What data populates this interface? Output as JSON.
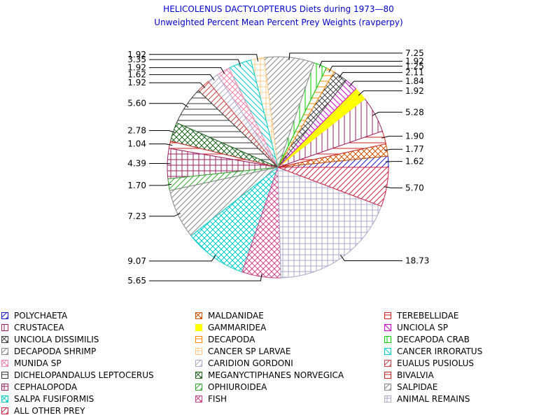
{
  "chart_data": {
    "type": "pie",
    "title": "HELICOLENUS DACTYLOPTERUS Diets during 1973—80",
    "subtitle": "Unweighted Percent Mean Percent Prey  Weights (ravperpy)",
    "title_color": "#0000cc",
    "slices": [
      {
        "name": "POLYCHAETA",
        "value": 1.62,
        "label": "1.62",
        "color": "#1a1acc",
        "pattern": "diag-up"
      },
      {
        "name": "MALDANIDAE",
        "value": 1.77,
        "label": "1.77",
        "color": "#cc5500",
        "pattern": "cross-diag"
      },
      {
        "name": "TEREBELLIDAE",
        "value": 1.9,
        "label": "1.90",
        "color": "#cc2222",
        "pattern": "horizontal"
      },
      {
        "name": "CRUSTACEA",
        "value": 5.28,
        "label": "5.28",
        "color": "#992266",
        "pattern": "vertical"
      },
      {
        "name": "GAMMARIDEA",
        "value": 1.92,
        "label": "1.92",
        "color": "#ffff00",
        "pattern": "solid"
      },
      {
        "name": "UNCIOLA SP",
        "value": 1.84,
        "label": "1.84",
        "color": "#cc00cc",
        "pattern": "diag-down"
      },
      {
        "name": "UNCIOLA DISSIMILIS",
        "value": 2.11,
        "label": "2.11",
        "color": "#444444",
        "pattern": "cross-diag"
      },
      {
        "name": "DECAPODA",
        "value": 1.25,
        "label": "1.25",
        "color": "#ff8800",
        "pattern": "horizontal"
      },
      {
        "name": "DECAPODA CRAB",
        "value": 1.92,
        "label": "1.92",
        "color": "#00cc00",
        "pattern": "vertical"
      },
      {
        "name": "DECAPODA SHRIMP",
        "value": 7.25,
        "label": "7.25",
        "color": "#888888",
        "pattern": "diag-up"
      },
      {
        "name": "CANCER SP LARVAE",
        "value": 1.92,
        "label": "1.92",
        "color": "#ffcc88",
        "pattern": "grid"
      },
      {
        "name": "CANCER IRRORATUS",
        "value": 3.35,
        "label": "3.35",
        "color": "#00cccc",
        "pattern": "diag-down"
      },
      {
        "name": "MUNIDA SP",
        "value": 1.92,
        "label": "1.92",
        "color": "#ee88aa",
        "pattern": "cross-diag"
      },
      {
        "name": "CARIDION GORDONI",
        "value": 1.62,
        "label": "1.62",
        "color": "#aaaacc",
        "pattern": "diag-up"
      },
      {
        "name": "EUALUS PUSIOLUS",
        "value": 1.92,
        "label": "1.92",
        "color": "#cc4444",
        "pattern": "diag-up"
      },
      {
        "name": "DICHELOPANDALUS LEPTOCERUS",
        "value": 5.6,
        "label": "5.60",
        "color": "#333333",
        "pattern": "horizontal"
      },
      {
        "name": "MEGANYCTIPHANES NORVEGICA",
        "value": 2.78,
        "label": "2.78",
        "color": "#226622",
        "pattern": "cross-diag"
      },
      {
        "name": "BIVALVIA",
        "value": 1.04,
        "label": "1.04",
        "color": "#cc2222",
        "pattern": "horizontal"
      },
      {
        "name": "CEPHALOPODA",
        "value": 4.39,
        "label": "4.39",
        "color": "#992266",
        "pattern": "grid"
      },
      {
        "name": "OPHIUROIDEA",
        "value": 1.7,
        "label": "1.70",
        "color": "#33aa33",
        "pattern": "diag-up"
      },
      {
        "name": "SALPIDAE",
        "value": 7.23,
        "label": "7.23",
        "color": "#888888",
        "pattern": "diag-up"
      },
      {
        "name": "SALPA FUSIFORMIS",
        "value": 9.07,
        "label": "9.07",
        "color": "#00cccc",
        "pattern": "cross-diag"
      },
      {
        "name": "FISH",
        "value": 5.65,
        "label": "5.65",
        "color": "#cc4488",
        "pattern": "cross-diag"
      },
      {
        "name": "ANIMAL REMAINS",
        "value": 18.73,
        "label": "18.73",
        "color": "#aaaacc",
        "pattern": "grid"
      },
      {
        "name": "ALL OTHER PREY",
        "value": 5.7,
        "label": "5.70",
        "color": "#cc2244",
        "pattern": "diag-up"
      }
    ],
    "legend": [
      [
        "POLYCHAETA",
        "MALDANIDAE",
        "TEREBELLIDAE"
      ],
      [
        "CRUSTACEA",
        "GAMMARIDEA",
        "UNCIOLA SP"
      ],
      [
        "UNCIOLA DISSIMILIS",
        "DECAPODA",
        "DECAPODA CRAB"
      ],
      [
        "DECAPODA SHRIMP",
        "CANCER SP LARVAE",
        "CANCER IRRORATUS"
      ],
      [
        "MUNIDA SP",
        "CARIDION GORDONI",
        "EUALUS PUSIOLUS"
      ],
      [
        "DICHELOPANDALUS LEPTOCERUS",
        "MEGANYCTIPHANES NORVEGICA",
        "BIVALVIA"
      ],
      [
        "CEPHALOPODA",
        "OPHIUROIDEA",
        "SALPIDAE"
      ],
      [
        "SALPA FUSIFORMIS",
        "FISH",
        "ANIMAL REMAINS"
      ],
      [
        "ALL OTHER PREY"
      ]
    ],
    "legend_placement": "bottom",
    "start_angle": "east",
    "direction": "counter-clockwise"
  }
}
